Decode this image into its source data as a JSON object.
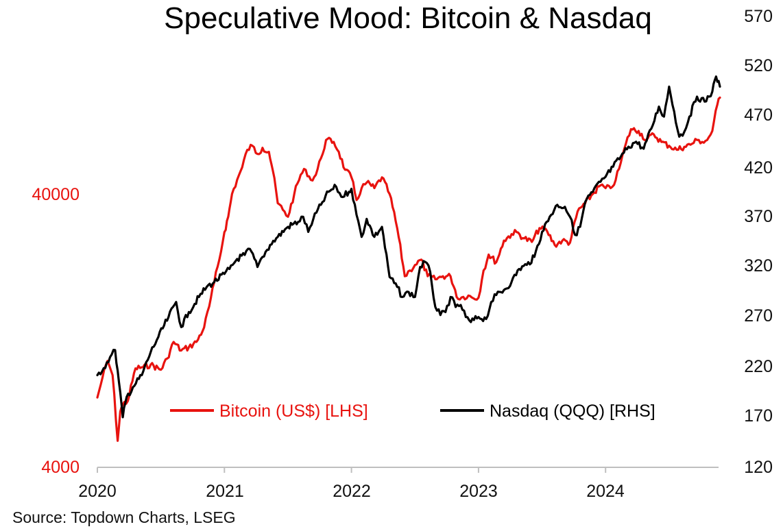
{
  "chart_data": {
    "type": "line",
    "title": "Speculative Mood: Bitcoin & Nasdaq",
    "source": "Source: Topdown Charts, LSEG",
    "colors": {
      "bitcoin": "#e8130f",
      "nasdaq": "#000000",
      "axis": "#bfbfbf"
    },
    "x_ticks": [
      "2020",
      "2021",
      "2022",
      "2023",
      "2024"
    ],
    "x_range": [
      2020.0,
      2024.9
    ],
    "left_axis": {
      "scale": "log",
      "ticks": [
        "40000",
        "4000"
      ],
      "ylim": [
        4000,
        110000
      ]
    },
    "right_axis": {
      "scale": "linear",
      "ticks": [
        "570",
        "520",
        "470",
        "420",
        "370",
        "320",
        "270",
        "220",
        "170",
        "120"
      ],
      "ylim": [
        120,
        570
      ]
    },
    "legend": [
      "Bitcoin (US$) [LHS]",
      "Nasdaq (QQQ) [RHS]"
    ],
    "series": [
      {
        "name": "Bitcoin (US$) [LHS]",
        "axis": "left",
        "x": [
          2020.0,
          2020.04,
          2020.08,
          2020.12,
          2020.16,
          2020.18,
          2020.2,
          2020.24,
          2020.3,
          2020.36,
          2020.42,
          2020.5,
          2020.55,
          2020.6,
          2020.66,
          2020.72,
          2020.78,
          2020.84,
          2020.88,
          2020.92,
          2020.96,
          2021.0,
          2021.03,
          2021.06,
          2021.1,
          2021.14,
          2021.18,
          2021.22,
          2021.26,
          2021.3,
          2021.35,
          2021.38,
          2021.42,
          2021.46,
          2021.5,
          2021.55,
          2021.6,
          2021.64,
          2021.68,
          2021.72,
          2021.76,
          2021.8,
          2021.86,
          2021.9,
          2021.95,
          2022.0,
          2022.04,
          2022.08,
          2022.12,
          2022.18,
          2022.24,
          2022.3,
          2022.36,
          2022.42,
          2022.46,
          2022.5,
          2022.55,
          2022.6,
          2022.66,
          2022.72,
          2022.78,
          2022.84,
          2022.88,
          2022.92,
          2022.96,
          2023.0,
          2023.04,
          2023.08,
          2023.14,
          2023.2,
          2023.26,
          2023.3,
          2023.36,
          2023.42,
          2023.48,
          2023.54,
          2023.6,
          2023.66,
          2023.72,
          2023.78,
          2023.84,
          2023.9,
          2023.96,
          2024.0,
          2024.04,
          2024.08,
          2024.12,
          2024.16,
          2024.2,
          2024.26,
          2024.32,
          2024.38,
          2024.44,
          2024.5,
          2024.56,
          2024.62,
          2024.68,
          2024.72,
          2024.76,
          2024.8,
          2024.84,
          2024.88,
          2024.9
        ],
        "values": [
          7200,
          8500,
          9800,
          8700,
          5000,
          6400,
          6800,
          7000,
          9200,
          9300,
          9500,
          9100,
          10000,
          11500,
          10700,
          11000,
          11500,
          13000,
          15500,
          19000,
          23000,
          29000,
          33000,
          40000,
          45000,
          50000,
          58000,
          60000,
          56000,
          59000,
          57000,
          49000,
          37000,
          35000,
          33000,
          40000,
          47000,
          49000,
          45000,
          47000,
          54000,
          63000,
          62000,
          57000,
          49000,
          46000,
          38000,
          42000,
          44000,
          42000,
          46000,
          40000,
          30000,
          20000,
          21000,
          22000,
          23000,
          20000,
          19500,
          20000,
          20000,
          16500,
          16800,
          17000,
          16600,
          16700,
          21000,
          24000,
          22500,
          27000,
          28500,
          29000,
          27500,
          26700,
          30000,
          29200,
          26000,
          27000,
          26500,
          34500,
          37000,
          40000,
          43000,
          42000,
          42000,
          45000,
          52000,
          61000,
          69000,
          68000,
          63000,
          66000,
          62000,
          60000,
          58000,
          59500,
          61000,
          63000,
          62000,
          63000,
          68000,
          85000,
          90000
        ],
        "color": "#e8130f"
      },
      {
        "name": "Nasdaq (QQQ) [RHS]",
        "axis": "right",
        "x": [
          2020.0,
          2020.05,
          2020.1,
          2020.14,
          2020.17,
          2020.2,
          2020.23,
          2020.28,
          2020.35,
          2020.42,
          2020.48,
          2020.56,
          2020.62,
          2020.66,
          2020.72,
          2020.8,
          2020.86,
          2020.92,
          2021.0,
          2021.04,
          2021.1,
          2021.16,
          2021.2,
          2021.26,
          2021.3,
          2021.36,
          2021.42,
          2021.5,
          2021.58,
          2021.62,
          2021.66,
          2021.7,
          2021.76,
          2021.82,
          2021.88,
          2021.92,
          2021.98,
          2022.0,
          2022.04,
          2022.08,
          2022.12,
          2022.18,
          2022.24,
          2022.3,
          2022.36,
          2022.4,
          2022.45,
          2022.5,
          2022.54,
          2022.58,
          2022.62,
          2022.66,
          2022.7,
          2022.74,
          2022.78,
          2022.82,
          2022.86,
          2022.9,
          2022.94,
          2023.0,
          2023.06,
          2023.1,
          2023.14,
          2023.2,
          2023.26,
          2023.32,
          2023.38,
          2023.44,
          2023.5,
          2023.56,
          2023.62,
          2023.68,
          2023.72,
          2023.76,
          2023.8,
          2023.84,
          2023.9,
          2023.96,
          2024.0,
          2024.06,
          2024.12,
          2024.18,
          2024.24,
          2024.3,
          2024.36,
          2024.42,
          2024.46,
          2024.5,
          2024.54,
          2024.58,
          2024.62,
          2024.66,
          2024.72,
          2024.78,
          2024.84,
          2024.87,
          2024.9
        ],
        "values": [
          212,
          219,
          230,
          237,
          205,
          170,
          190,
          200,
          212,
          235,
          250,
          270,
          285,
          260,
          275,
          290,
          300,
          305,
          313,
          318,
          328,
          332,
          338,
          320,
          330,
          342,
          350,
          360,
          365,
          370,
          355,
          368,
          382,
          395,
          400,
          390,
          395,
          398,
          372,
          350,
          368,
          350,
          360,
          310,
          300,
          290,
          295,
          290,
          320,
          325,
          315,
          280,
          272,
          275,
          290,
          280,
          282,
          270,
          265,
          270,
          268,
          285,
          292,
          297,
          305,
          318,
          322,
          330,
          355,
          370,
          382,
          380,
          370,
          352,
          360,
          385,
          395,
          405,
          410,
          420,
          430,
          440,
          445,
          438,
          458,
          480,
          470,
          500,
          475,
          450,
          455,
          470,
          490,
          485,
          495,
          510,
          500
        ],
        "color": "#000000"
      }
    ]
  }
}
